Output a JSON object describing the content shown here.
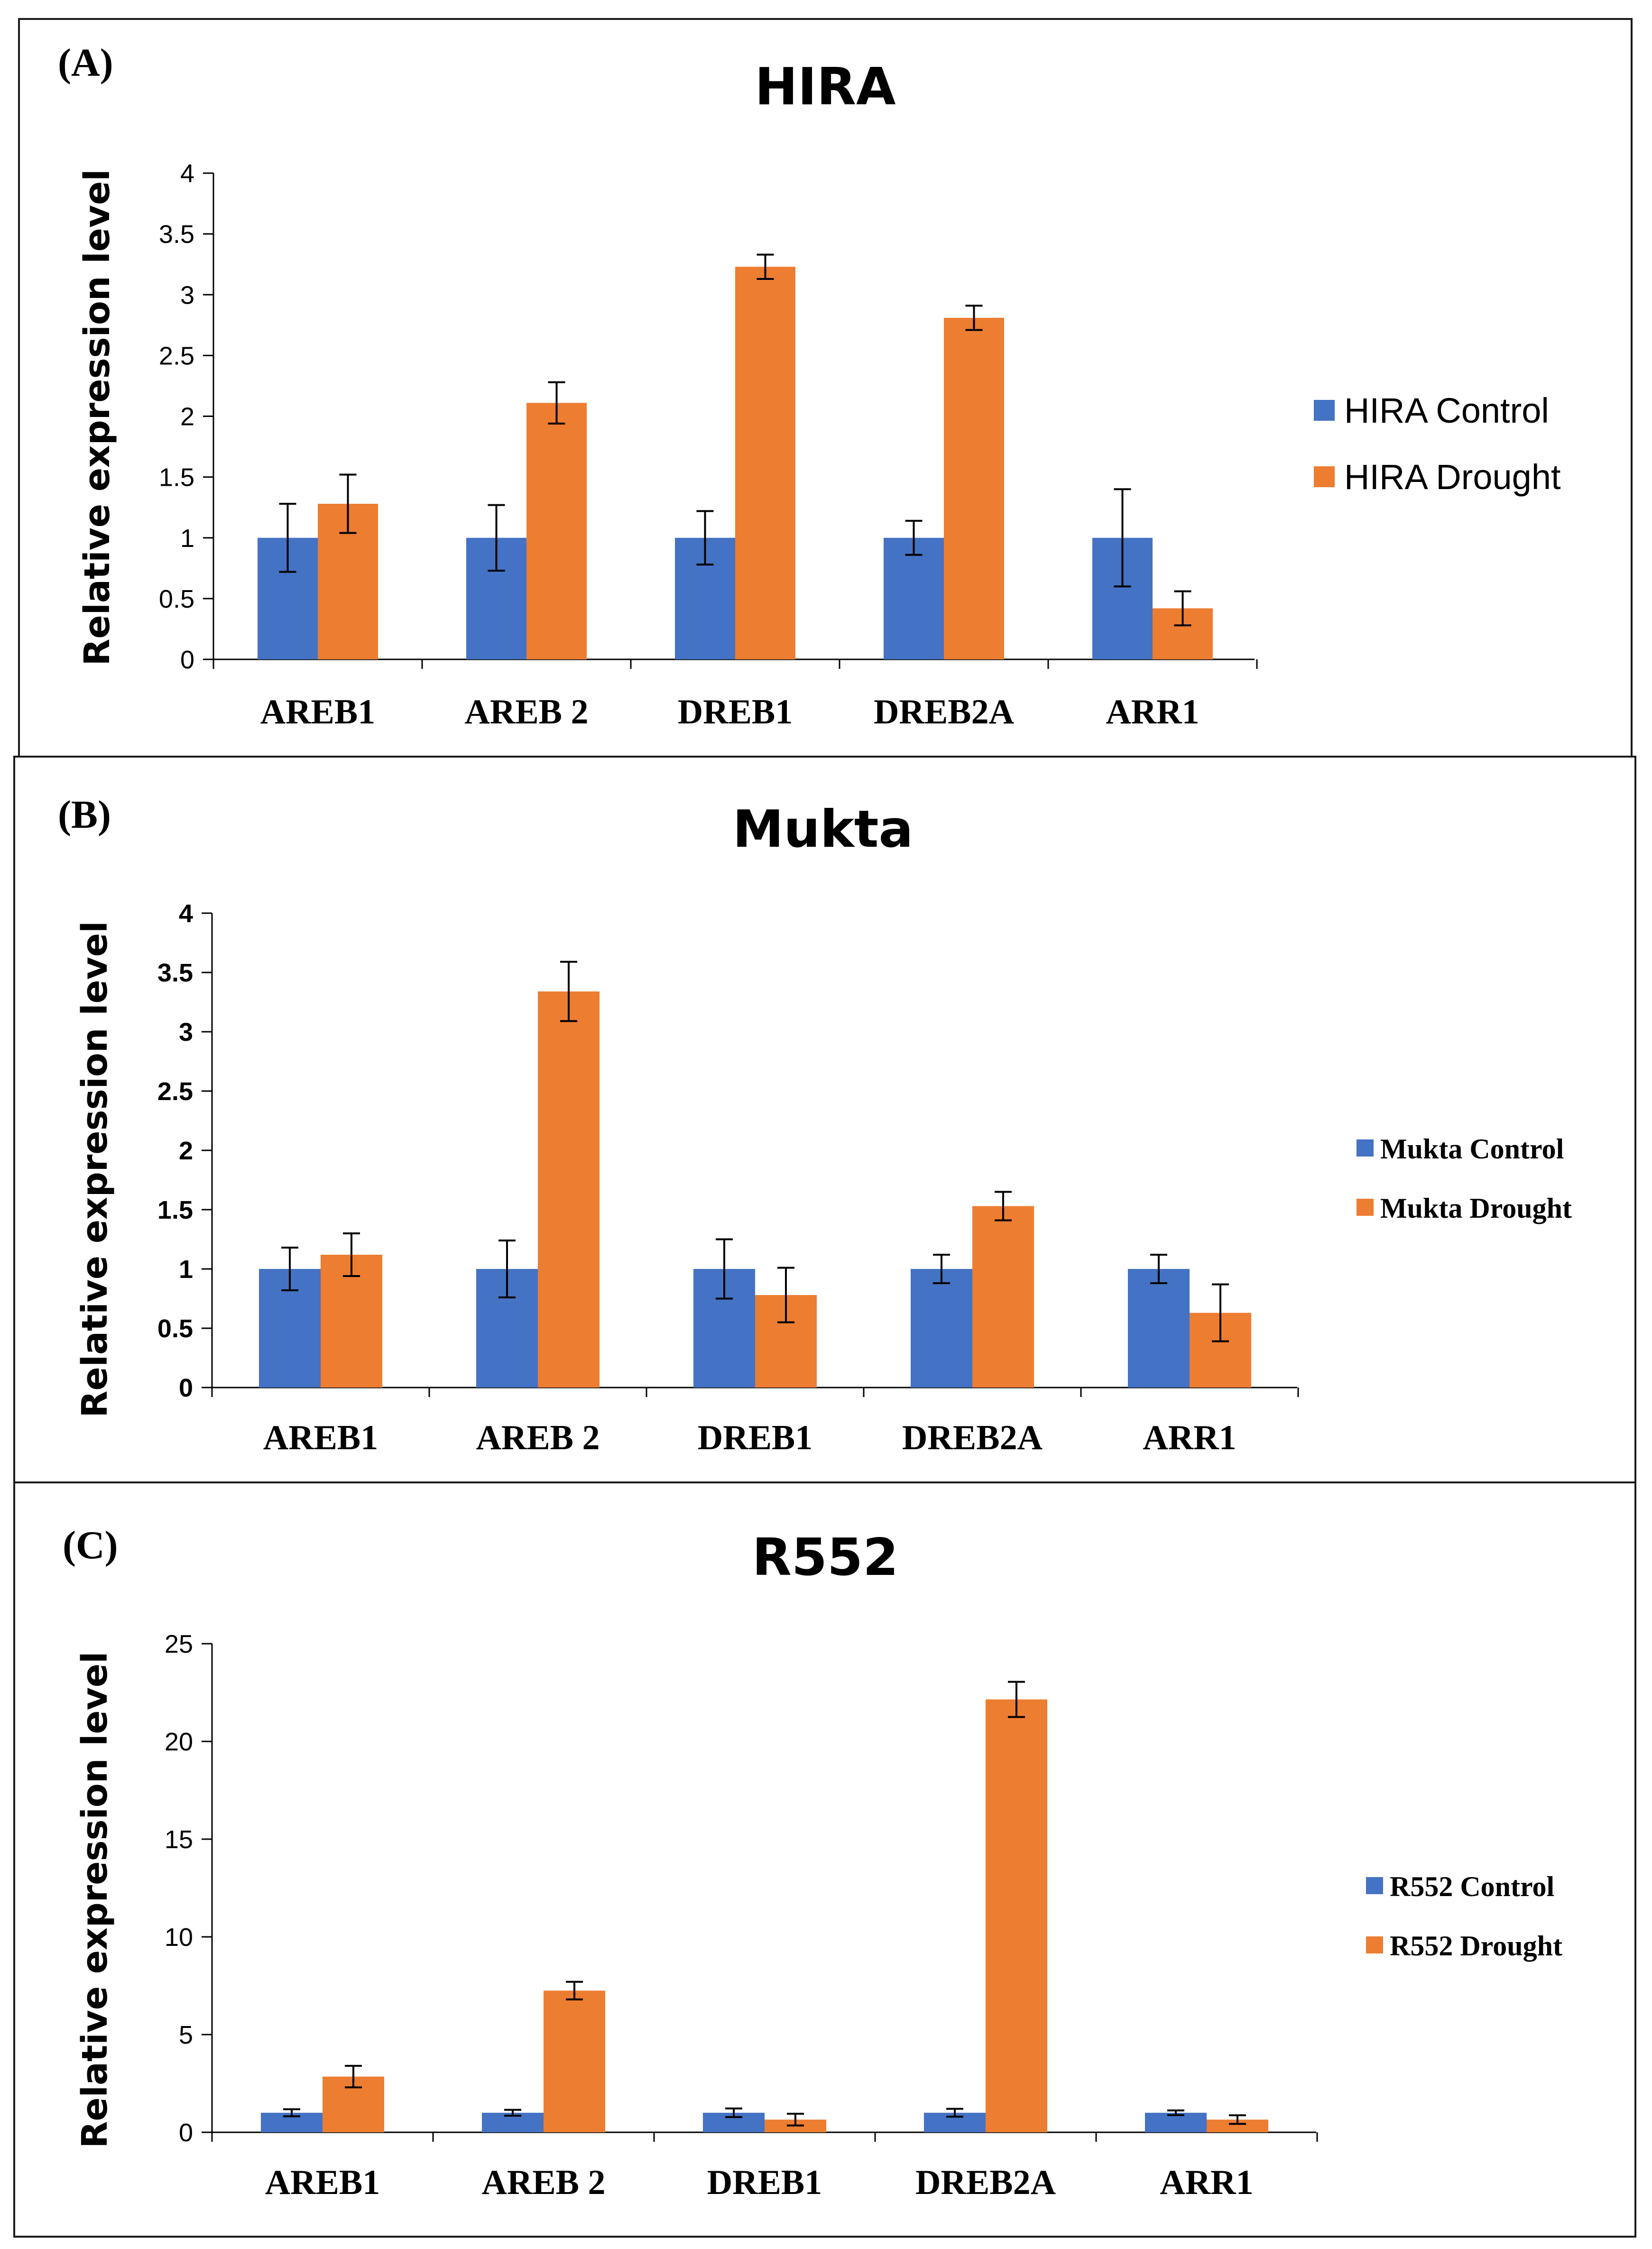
{
  "colors": {
    "control": "#4472C4",
    "drought": "#ED7D31",
    "frame": "#1a1a1a"
  },
  "chart_data": [
    {
      "type": "bar",
      "panel_label": "(A)",
      "title": "HIRA",
      "xlabel": "",
      "ylabel": "Relative expression level",
      "ylim": [
        0,
        4
      ],
      "yticks": [
        "0",
        "0.5",
        "1",
        "1.5",
        "2",
        "2.5",
        "3",
        "3.5",
        "4"
      ],
      "categories": [
        "AREB1",
        "AREB 2",
        "DREB1",
        "DREB2A",
        "ARR1"
      ],
      "legend_position": "right",
      "series": [
        {
          "name": "HIRA Control",
          "values": [
            1,
            1,
            1,
            1,
            1
          ],
          "errors": [
            0.28,
            0.27,
            0.22,
            0.14,
            0.4
          ]
        },
        {
          "name": "HIRA Drought",
          "values": [
            1.28,
            2.11,
            3.23,
            2.81,
            0.42
          ],
          "errors": [
            0.24,
            0.17,
            0.1,
            0.1,
            0.14
          ]
        }
      ]
    },
    {
      "type": "bar",
      "panel_label": "(B)",
      "title": "Mukta",
      "xlabel": "",
      "ylabel": "Relative expression level",
      "ylim": [
        0,
        4
      ],
      "yticks": [
        "0",
        "0.5",
        "1",
        "1.5",
        "2",
        "2.5",
        "3",
        "3.5",
        "4"
      ],
      "categories": [
        "AREB1",
        "AREB 2",
        "DREB1",
        "DREB2A",
        "ARR1"
      ],
      "legend_position": "right",
      "series": [
        {
          "name": "Mukta Control",
          "values": [
            1,
            1,
            1,
            1,
            1
          ],
          "errors": [
            0.18,
            0.24,
            0.25,
            0.12,
            0.12
          ]
        },
        {
          "name": "Mukta Drought",
          "values": [
            1.12,
            3.34,
            0.78,
            1.53,
            0.63
          ],
          "errors": [
            0.18,
            0.25,
            0.23,
            0.12,
            0.24
          ]
        }
      ]
    },
    {
      "type": "bar",
      "panel_label": "(C)",
      "title": "R552",
      "xlabel": "",
      "ylabel": "Relative expression level",
      "ylim": [
        0,
        25
      ],
      "yticks": [
        "0",
        "5",
        "10",
        "15",
        "20",
        "25"
      ],
      "categories": [
        "AREB1",
        "AREB 2",
        "DREB1",
        "DREB2A",
        "ARR1"
      ],
      "legend_position": "right",
      "series": [
        {
          "name": "R552 Control",
          "values": [
            1,
            1,
            1,
            1,
            1
          ],
          "errors": [
            0.18,
            0.15,
            0.22,
            0.2,
            0.12
          ]
        },
        {
          "name": "R552 Drought",
          "values": [
            2.85,
            7.25,
            0.65,
            22.15,
            0.65
          ],
          "errors": [
            0.55,
            0.45,
            0.3,
            0.9,
            0.22
          ]
        }
      ]
    }
  ]
}
